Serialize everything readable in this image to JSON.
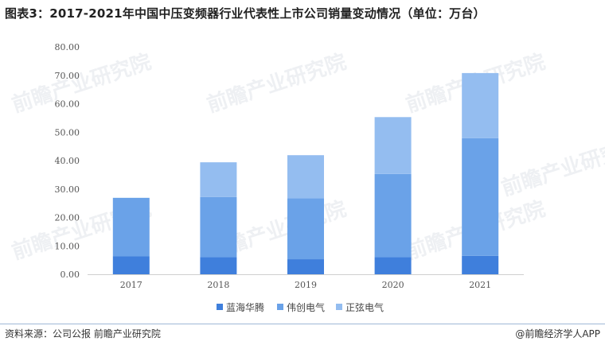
{
  "title": "图表3：2017-2021年中国中压变频器行业代表性上市公司销量变动情况（单位：万台）",
  "source": "资料来源：公司公报 前瞻产业研究院",
  "brand": "@前瞻经济学人APP",
  "watermark": "前瞻产业研究院",
  "chart_data": {
    "type": "bar",
    "stacked": true,
    "categories": [
      "2017",
      "2018",
      "2019",
      "2020",
      "2021"
    ],
    "series": [
      {
        "name": "蓝海华腾",
        "color": "#3f7fdc",
        "values": [
          6.3,
          6.0,
          5.3,
          6.0,
          6.5
        ]
      },
      {
        "name": "伟创电气",
        "color": "#6aa2e8",
        "values": [
          20.6,
          21.2,
          21.4,
          29.3,
          41.4
        ]
      },
      {
        "name": "正弦电气",
        "color": "#94bdf0",
        "values": [
          0,
          12.2,
          15.2,
          20.0,
          22.9
        ]
      }
    ],
    "yticks": [
      "0.00",
      "10.00",
      "20.00",
      "30.00",
      "40.00",
      "50.00",
      "60.00",
      "70.00",
      "80.00"
    ],
    "ylim": [
      0,
      80
    ],
    "legend_position": "bottom"
  }
}
